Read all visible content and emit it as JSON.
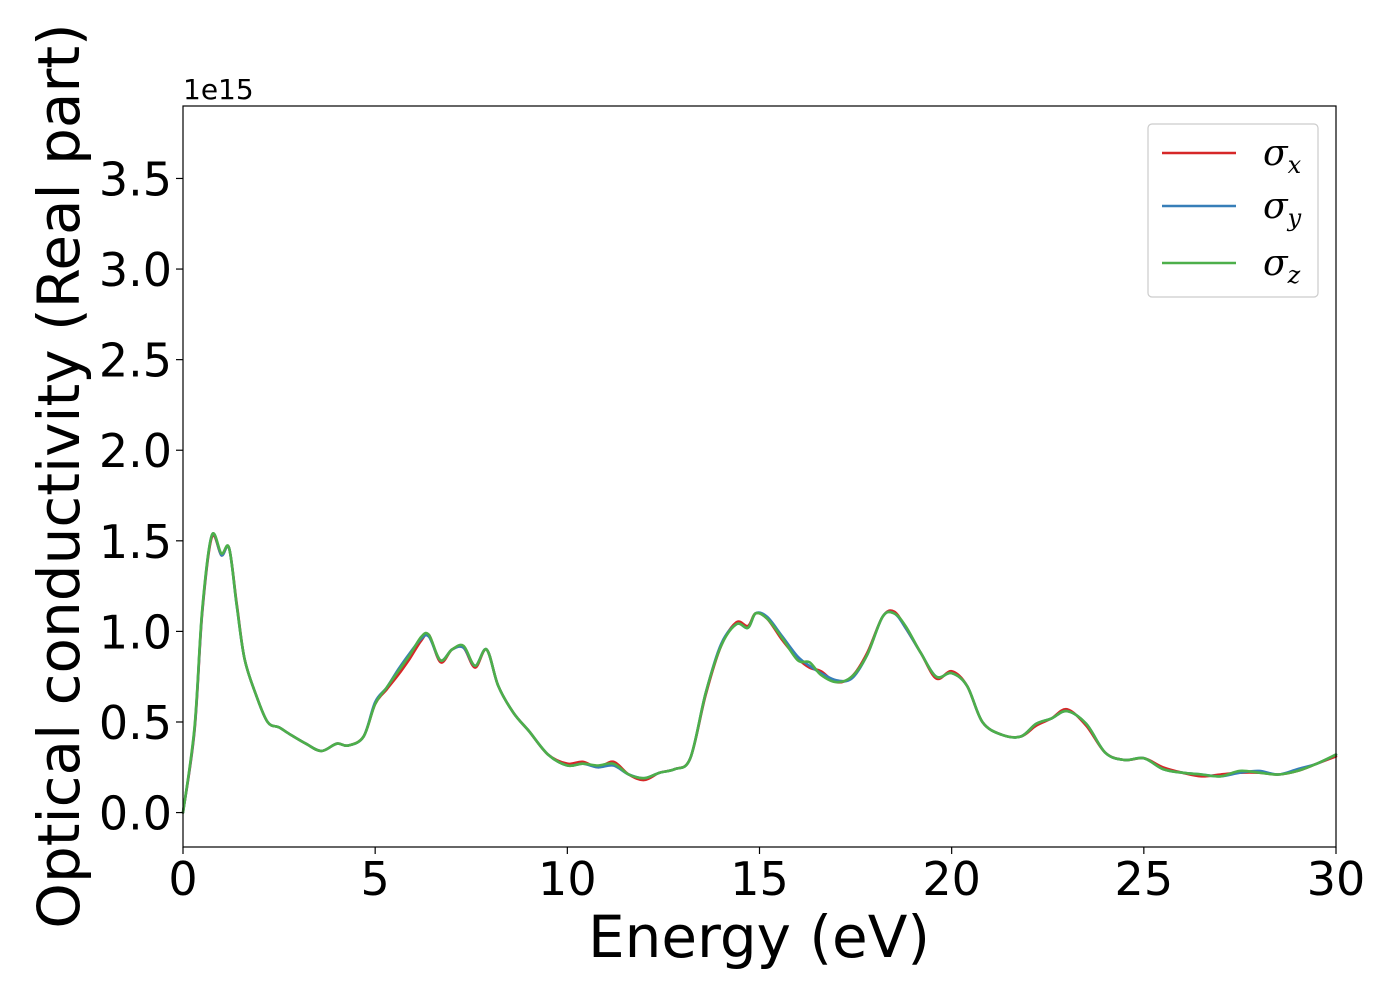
{
  "chart_data": {
    "type": "line",
    "xlabel": "Energy (eV)",
    "ylabel": "Optical conductivity (Real part)",
    "y_offset_label": "1e15",
    "xlim": [
      0,
      30
    ],
    "ylim": [
      -0.19,
      3.9
    ],
    "x_ticks": [
      0,
      5,
      10,
      15,
      20,
      25,
      30
    ],
    "x_tick_labels": [
      "0",
      "5",
      "10",
      "15",
      "20",
      "25",
      "30"
    ],
    "y_ticks": [
      0.0,
      0.5,
      1.0,
      1.5,
      2.0,
      2.5,
      3.0,
      3.5
    ],
    "y_tick_labels": [
      "0.0",
      "0.5",
      "1.0",
      "1.5",
      "2.0",
      "2.5",
      "3.0",
      "3.5"
    ],
    "grid": false,
    "legend_position": "top-right",
    "series": [
      {
        "name": "σx",
        "symbol": "σ",
        "subscript": "x",
        "color": "#d62728",
        "x": [
          0,
          0.3,
          0.5,
          0.75,
          1.0,
          1.2,
          1.4,
          1.6,
          1.9,
          2.2,
          2.5,
          2.8,
          3.2,
          3.6,
          4.0,
          4.3,
          4.7,
          5.0,
          5.3,
          5.6,
          5.9,
          6.2,
          6.4,
          6.7,
          7.0,
          7.3,
          7.6,
          7.9,
          8.2,
          8.6,
          9.0,
          9.5,
          10.0,
          10.4,
          10.8,
          11.2,
          11.6,
          12.0,
          12.4,
          12.8,
          13.2,
          13.6,
          14.0,
          14.4,
          14.7,
          14.9,
          15.2,
          15.6,
          16.0,
          16.3,
          16.6,
          17.0,
          17.4,
          17.8,
          18.2,
          18.5,
          18.8,
          19.2,
          19.6,
          20.0,
          20.4,
          20.8,
          21.3,
          21.8,
          22.2,
          22.6,
          23.0,
          23.5,
          24.0,
          24.5,
          25.0,
          25.5,
          26.0,
          26.5,
          27.0,
          27.5,
          28.0,
          28.5,
          29.0,
          29.5,
          30.0
        ],
        "values": [
          0.0,
          0.45,
          1.1,
          1.52,
          1.42,
          1.46,
          1.15,
          0.85,
          0.65,
          0.5,
          0.47,
          0.43,
          0.38,
          0.34,
          0.38,
          0.37,
          0.42,
          0.6,
          0.68,
          0.76,
          0.85,
          0.95,
          0.98,
          0.83,
          0.9,
          0.91,
          0.8,
          0.9,
          0.7,
          0.55,
          0.45,
          0.32,
          0.27,
          0.28,
          0.25,
          0.28,
          0.21,
          0.18,
          0.22,
          0.24,
          0.3,
          0.65,
          0.92,
          1.05,
          1.03,
          1.1,
          1.07,
          0.95,
          0.85,
          0.8,
          0.78,
          0.72,
          0.75,
          0.88,
          1.08,
          1.11,
          1.02,
          0.88,
          0.74,
          0.78,
          0.7,
          0.5,
          0.43,
          0.42,
          0.48,
          0.52,
          0.57,
          0.48,
          0.33,
          0.29,
          0.3,
          0.25,
          0.22,
          0.2,
          0.21,
          0.22,
          0.22,
          0.21,
          0.23,
          0.27,
          0.31
        ]
      },
      {
        "name": "σy",
        "symbol": "σ",
        "subscript": "y",
        "color": "#377eb8",
        "x": [
          0,
          0.3,
          0.5,
          0.75,
          1.0,
          1.2,
          1.4,
          1.6,
          1.9,
          2.2,
          2.5,
          2.8,
          3.2,
          3.6,
          4.0,
          4.3,
          4.7,
          5.0,
          5.3,
          5.6,
          5.9,
          6.2,
          6.4,
          6.7,
          7.0,
          7.3,
          7.6,
          7.9,
          8.2,
          8.6,
          9.0,
          9.5,
          10.0,
          10.4,
          10.8,
          11.2,
          11.6,
          12.0,
          12.4,
          12.8,
          13.2,
          13.6,
          14.0,
          14.4,
          14.7,
          14.9,
          15.2,
          15.6,
          16.0,
          16.3,
          16.6,
          17.0,
          17.4,
          17.8,
          18.2,
          18.5,
          18.8,
          19.2,
          19.6,
          20.0,
          20.4,
          20.8,
          21.3,
          21.8,
          22.2,
          22.6,
          23.0,
          23.5,
          24.0,
          24.5,
          25.0,
          25.5,
          26.0,
          26.5,
          27.0,
          27.5,
          28.0,
          28.5,
          29.0,
          29.5,
          30.0
        ],
        "values": [
          0.0,
          0.46,
          1.11,
          1.53,
          1.42,
          1.46,
          1.14,
          0.85,
          0.65,
          0.5,
          0.47,
          0.43,
          0.38,
          0.34,
          0.38,
          0.37,
          0.42,
          0.61,
          0.69,
          0.79,
          0.88,
          0.96,
          0.97,
          0.84,
          0.9,
          0.91,
          0.81,
          0.9,
          0.7,
          0.55,
          0.45,
          0.32,
          0.26,
          0.27,
          0.25,
          0.26,
          0.21,
          0.19,
          0.22,
          0.24,
          0.3,
          0.66,
          0.93,
          1.04,
          1.02,
          1.1,
          1.08,
          0.97,
          0.86,
          0.81,
          0.77,
          0.73,
          0.74,
          0.87,
          1.08,
          1.1,
          1.02,
          0.88,
          0.75,
          0.77,
          0.7,
          0.5,
          0.43,
          0.42,
          0.49,
          0.52,
          0.56,
          0.49,
          0.33,
          0.29,
          0.3,
          0.24,
          0.22,
          0.21,
          0.2,
          0.22,
          0.23,
          0.21,
          0.24,
          0.27,
          0.32
        ]
      },
      {
        "name": "σz",
        "symbol": "σ",
        "subscript": "z",
        "color": "#4daf4a",
        "x": [
          0,
          0.3,
          0.5,
          0.75,
          1.0,
          1.2,
          1.4,
          1.6,
          1.9,
          2.2,
          2.5,
          2.8,
          3.2,
          3.6,
          4.0,
          4.3,
          4.7,
          5.0,
          5.3,
          5.6,
          5.9,
          6.2,
          6.4,
          6.7,
          7.0,
          7.3,
          7.6,
          7.9,
          8.2,
          8.6,
          9.0,
          9.5,
          10.0,
          10.4,
          10.8,
          11.2,
          11.6,
          12.0,
          12.4,
          12.8,
          13.2,
          13.6,
          14.0,
          14.4,
          14.7,
          14.9,
          15.2,
          15.6,
          16.0,
          16.3,
          16.6,
          17.0,
          17.4,
          17.8,
          18.2,
          18.5,
          18.8,
          19.2,
          19.6,
          20.0,
          20.4,
          20.8,
          21.3,
          21.8,
          22.2,
          22.6,
          23.0,
          23.5,
          24.0,
          24.5,
          25.0,
          25.5,
          26.0,
          26.5,
          27.0,
          27.5,
          28.0,
          28.5,
          29.0,
          29.5,
          30.0
        ],
        "values": [
          0.0,
          0.47,
          1.12,
          1.53,
          1.43,
          1.46,
          1.14,
          0.85,
          0.65,
          0.5,
          0.47,
          0.43,
          0.38,
          0.34,
          0.38,
          0.37,
          0.42,
          0.6,
          0.69,
          0.78,
          0.87,
          0.97,
          0.98,
          0.84,
          0.9,
          0.92,
          0.81,
          0.9,
          0.7,
          0.55,
          0.45,
          0.32,
          0.26,
          0.27,
          0.26,
          0.27,
          0.21,
          0.19,
          0.22,
          0.24,
          0.3,
          0.66,
          0.92,
          1.04,
          1.02,
          1.1,
          1.07,
          0.96,
          0.84,
          0.83,
          0.76,
          0.72,
          0.75,
          0.87,
          1.08,
          1.1,
          1.03,
          0.88,
          0.75,
          0.77,
          0.7,
          0.5,
          0.43,
          0.42,
          0.49,
          0.52,
          0.56,
          0.49,
          0.33,
          0.29,
          0.3,
          0.24,
          0.22,
          0.21,
          0.2,
          0.23,
          0.22,
          0.21,
          0.23,
          0.27,
          0.32
        ]
      }
    ]
  }
}
